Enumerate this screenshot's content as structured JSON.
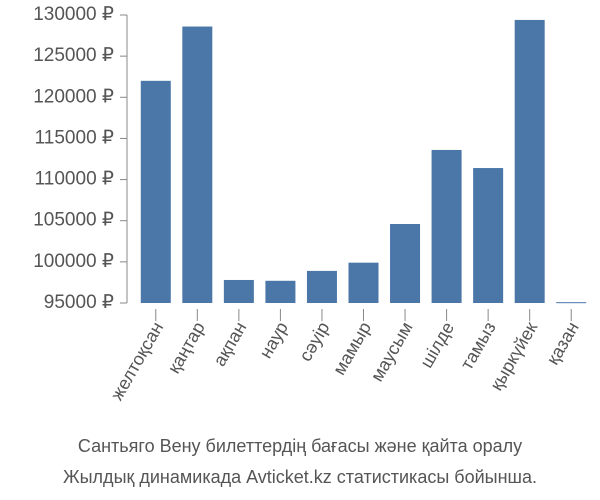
{
  "chart_data": {
    "type": "bar",
    "title_lines": [
      "Сантьяго Вену билеттердің бағасы және қайта оралу",
      "Жылдық динамикада Avticket.kz статистикасы бойынша."
    ],
    "categories": [
      "желтоқсан",
      "қаңтар",
      "ақпан",
      "наур",
      "сәуір",
      "мамыр",
      "маусым",
      "шілде",
      "тамыз",
      "қыркүйек",
      "қазан"
    ],
    "values": [
      122000,
      128600,
      97800,
      97700,
      98900,
      99900,
      104600,
      113600,
      111400,
      129400,
      95100
    ],
    "color": "#4a76a8",
    "ylim": [
      95000,
      130000
    ],
    "yticks": [
      {
        "value": 95000,
        "label": "95000 ₽"
      },
      {
        "value": 100000,
        "label": "100000 ₽"
      },
      {
        "value": 105000,
        "label": "105000 ₽"
      },
      {
        "value": 110000,
        "label": "110000 ₽"
      },
      {
        "value": 115000,
        "label": "115000 ₽"
      },
      {
        "value": 120000,
        "label": "120000 ₽"
      },
      {
        "value": 125000,
        "label": "125000 ₽"
      },
      {
        "value": 130000,
        "label": "130000 ₽"
      }
    ],
    "grid": false
  }
}
